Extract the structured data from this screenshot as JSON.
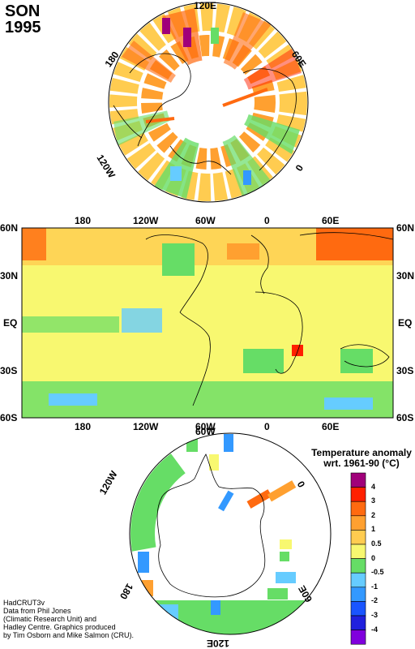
{
  "title": {
    "line1": "SON",
    "line2": "1995"
  },
  "north_map": {
    "labels": {
      "top": "120E",
      "left": "180",
      "right": "60E",
      "bottom_left": "120W",
      "bottom_right": "0"
    }
  },
  "world_map": {
    "lon_labels": [
      "180",
      "120W",
      "60W",
      "0",
      "60E"
    ],
    "lat_labels": [
      "60N",
      "30N",
      "EQ",
      "30S",
      "60S"
    ]
  },
  "south_map": {
    "labels": {
      "top": "60W",
      "left": "120W",
      "right": "0",
      "bottom": "120E",
      "bottom_left": "180",
      "bottom_right": "60E"
    }
  },
  "legend": {
    "title_line1": "Temperature anomaly",
    "title_line2": "wrt. 1961-90  (°C)",
    "colors": [
      "#a0007a",
      "#ff2000",
      "#ff6a10",
      "#ffa030",
      "#ffcc50",
      "#f8f870",
      "#66dd66",
      "#66ccff",
      "#3399ff",
      "#1a55ff",
      "#2020dd",
      "#8000dd"
    ],
    "labels": [
      "4",
      "3",
      "2",
      "1",
      "0.5",
      "0",
      "-0.5",
      "-1",
      "-2",
      "-3",
      "-4"
    ]
  },
  "credit": [
    "HadCRUT3v",
    "Data from Phil Jones",
    "(Climatic Research Unit) and",
    "Hadley Centre.  Graphics produced",
    "by Tim Osborn and Mike Salmon (CRU)."
  ]
}
